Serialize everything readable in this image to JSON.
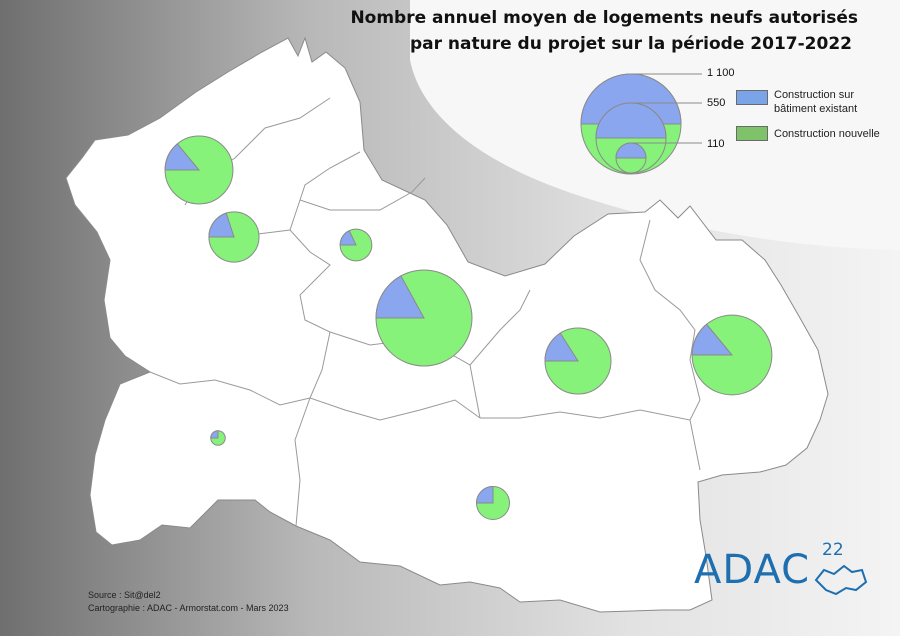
{
  "title": {
    "line1": "Nombre annuel moyen de logements neufs autorisés",
    "line2": "par nature du projet sur la période 2017-2022"
  },
  "legend": {
    "size_values": [
      "1 100",
      "550",
      "110"
    ],
    "categories": [
      {
        "label_line1": "Construction sur",
        "label_line2": "bâtiment existant",
        "color": "#7ba3e8"
      },
      {
        "label_line1": "Construction nouvelle",
        "label_line2": "",
        "color": "#7ec26a"
      }
    ]
  },
  "colors": {
    "existing": "#8aa6ee",
    "new": "#86f27a",
    "territory": "#ffffff",
    "border": "#8a8a8a",
    "logo": "#1e6fb0"
  },
  "pies": [
    {
      "name": "pie-northwest",
      "total": 550,
      "existing_share": 0.14
    },
    {
      "name": "pie-west-center",
      "total": 300,
      "existing_share": 0.2
    },
    {
      "name": "pie-north-center",
      "total": 120,
      "existing_share": 0.18
    },
    {
      "name": "pie-center",
      "total": 1100,
      "existing_share": 0.17
    },
    {
      "name": "pie-east-center",
      "total": 520,
      "existing_share": 0.16
    },
    {
      "name": "pie-east",
      "total": 760,
      "existing_share": 0.14
    },
    {
      "name": "pie-southwest",
      "total": 25,
      "existing_share": 0.25
    },
    {
      "name": "pie-south",
      "total": 130,
      "existing_share": 0.25
    }
  ],
  "source": {
    "line1": "Source : Sit@del2",
    "line2": "Cartographie : ADAC - Armorstat.com - Mars 2023"
  },
  "logo": {
    "text": "ADAC",
    "number": "22"
  }
}
